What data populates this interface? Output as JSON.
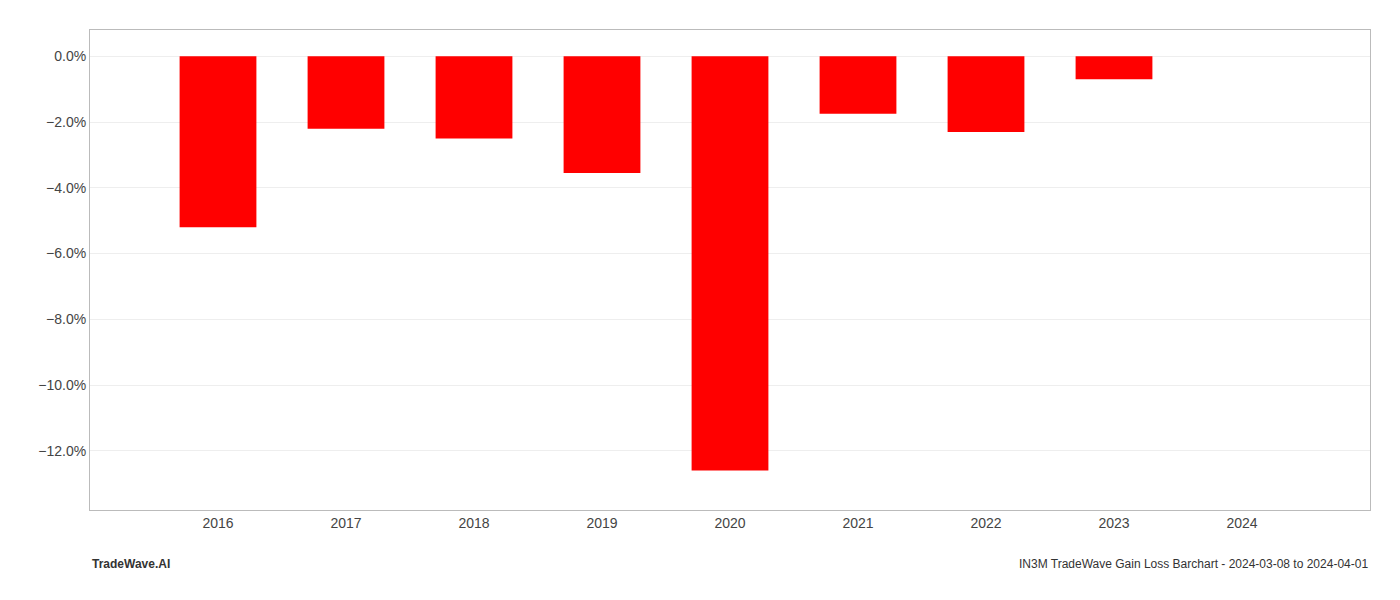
{
  "chart_data": {
    "type": "bar",
    "x": [
      2016,
      2017,
      2018,
      2019,
      2020,
      2021,
      2022,
      2023,
      2024
    ],
    "values": [
      -5.2,
      -2.2,
      -2.5,
      -3.55,
      -12.6,
      -1.75,
      -2.3,
      -0.7,
      0.0
    ],
    "color": "#ff0000",
    "xlim": [
      2015.0,
      2025.0
    ],
    "xticks": [
      2016,
      2017,
      2018,
      2019,
      2020,
      2021,
      2022,
      2023,
      2024
    ],
    "ylim": [
      -13.8,
      0.8
    ],
    "yticks": [
      {
        "value": 0.0,
        "label": "0.0%"
      },
      {
        "value": -2.0,
        "label": "−2.0%"
      },
      {
        "value": -4.0,
        "label": "−4.0%"
      },
      {
        "value": -6.0,
        "label": "−6.0%"
      },
      {
        "value": -8.0,
        "label": "−8.0%"
      },
      {
        "value": -10.0,
        "label": "−10.0%"
      },
      {
        "value": -12.0,
        "label": "−12.0%"
      }
    ],
    "grid": true,
    "annotations": [
      {
        "text": "TradeWave.AI"
      },
      {
        "text": "IN3M TradeWave Gain Loss Barchart - 2024-03-08 to 2024-04-01"
      }
    ]
  }
}
